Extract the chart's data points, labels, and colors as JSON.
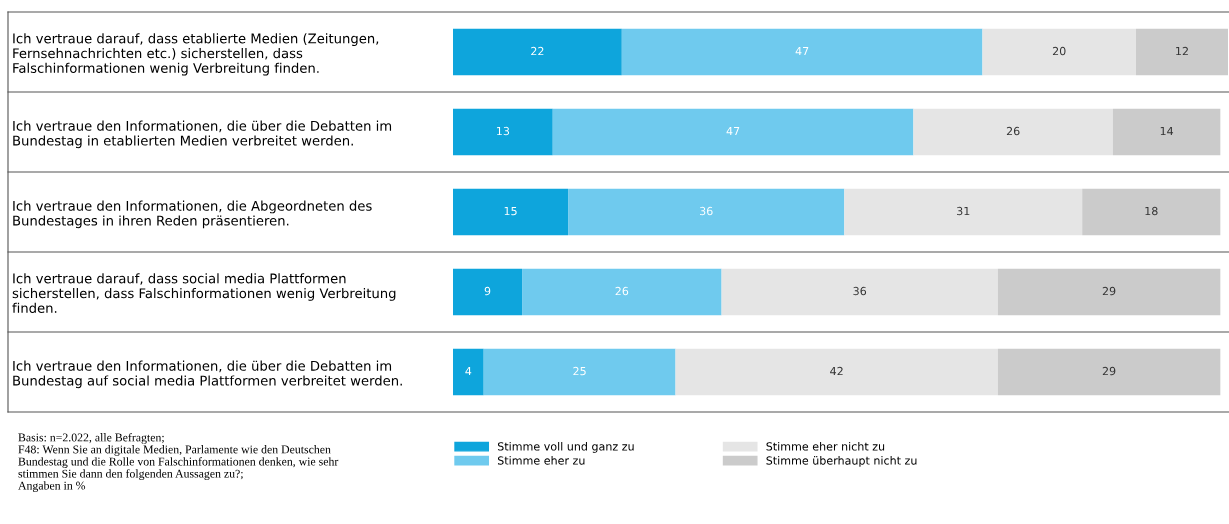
{
  "chart_data": {
    "type": "bar",
    "orientation": "horizontal",
    "stacked": true,
    "data_labels": true,
    "tick_labels": "y",
    "grid": false,
    "legend": "bottom",
    "categories": [
      "Ich vertraue darauf, dass etablierte Medien (Zeitungen,\nFernsehnachrichten etc.) sicherstellen, dass\nFalschinformationen wenig Verbreitung finden.",
      "Ich vertraue den Informationen, die über die Debatten im\nBundestag in etablierten Medien verbreitet werden.",
      "Ich vertraue den Informationen, die Abgeordneten des\nBundestages in ihren Reden präsentieren.",
      "Ich vertraue darauf, dass social media Plattformen\nsicherstellen, dass Falschinformationen wenig Verbreitung\nfinden.",
      "Ich vertraue den Informationen, die über die Debatten im\nBundestag auf social media Plattformen verbreitet werden."
    ],
    "series": [
      {
        "name": "Stimme voll und ganz zu",
        "color": "#0ea5dc",
        "values": [
          22,
          13,
          15,
          9,
          4
        ]
      },
      {
        "name": "Stimme eher zu",
        "color": "#6fcaee",
        "values": [
          47,
          47,
          36,
          26,
          25
        ]
      },
      {
        "name": "Stimme eher nicht zu",
        "color": "#e5e5e5",
        "values": [
          20,
          26,
          31,
          36,
          42
        ]
      },
      {
        "name": "Stimme überhaupt nicht zu",
        "color": "#cbcbcb",
        "values": [
          12,
          14,
          18,
          29,
          29
        ]
      }
    ],
    "annotations": [
      "Basis: n=2.022, alle Befragten;\nF48: Wenn Sie an digitale Medien, Parlamente wie den Deutschen\nBundestag und die Rolle von Falschinformationen denken, wie sehr\nstimmen Sie dann den folgenden Aussagen zu?;\nAngaben in %"
    ]
  }
}
